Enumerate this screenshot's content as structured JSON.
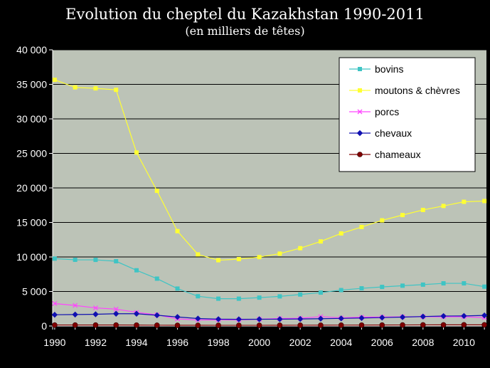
{
  "chart_data": {
    "type": "line",
    "title": "Evolution du cheptel du Kazakhstan 1990-2011",
    "subtitle": "(en milliers de têtes)",
    "xlabel": "",
    "ylabel": "",
    "x": [
      1990,
      1991,
      1992,
      1993,
      1994,
      1995,
      1996,
      1997,
      1998,
      1999,
      2000,
      2001,
      2002,
      2003,
      2004,
      2005,
      2006,
      2007,
      2008,
      2009,
      2010,
      2011
    ],
    "xlim": [
      1990,
      2011
    ],
    "ylim": [
      0,
      40000
    ],
    "x_ticks": [
      1990,
      1992,
      1994,
      1996,
      1998,
      2000,
      2002,
      2004,
      2006,
      2008,
      2010
    ],
    "y_ticks": [
      {
        "value": 0,
        "label": "0"
      },
      {
        "value": 5000,
        "label": "5 000"
      },
      {
        "value": 10000,
        "label": "10 000"
      },
      {
        "value": 15000,
        "label": "15 000"
      },
      {
        "value": 20000,
        "label": "20 000"
      },
      {
        "value": 25000,
        "label": "25 000"
      },
      {
        "value": 30000,
        "label": "30 000"
      },
      {
        "value": 35000,
        "label": "35 000"
      },
      {
        "value": 40000,
        "label": "40 000"
      }
    ],
    "grid": true,
    "legend_position": "top-right",
    "plot_background": "#bcc3b7",
    "series": [
      {
        "name": "bovins",
        "color": "#3fc4c4",
        "marker": "square",
        "values": [
          9760,
          9590,
          9580,
          9380,
          8070,
          6860,
          5420,
          4310,
          3960,
          3960,
          4110,
          4290,
          4560,
          4840,
          5200,
          5460,
          5660,
          5840,
          5990,
          6180,
          6180,
          5700
        ]
      },
      {
        "name": "moutons & chèvres",
        "color": "#ffff33",
        "marker": "square",
        "values": [
          35660,
          34560,
          34420,
          34210,
          25130,
          19580,
          13740,
          10370,
          9530,
          9690,
          9980,
          10480,
          11270,
          12250,
          13410,
          14340,
          15300,
          16070,
          16810,
          17390,
          17990,
          18100
        ]
      },
      {
        "name": "porcs",
        "color": "#ff44ff",
        "marker": "x",
        "values": [
          3250,
          2980,
          2620,
          2440,
          1980,
          1620,
          1030,
          880,
          890,
          890,
          980,
          1080,
          1120,
          1360,
          1180,
          1290,
          1310,
          1330,
          1350,
          1330,
          1340,
          1210
        ]
      },
      {
        "name": "chevaux",
        "color": "#1010b0",
        "marker": "diamond",
        "values": [
          1630,
          1660,
          1700,
          1780,
          1780,
          1560,
          1310,
          1080,
          990,
          970,
          980,
          990,
          1020,
          1060,
          1100,
          1160,
          1220,
          1290,
          1370,
          1440,
          1460,
          1530
        ]
      },
      {
        "name": "chameaux",
        "color": "#800000",
        "marker": "circle",
        "values": [
          140,
          140,
          140,
          140,
          130,
          110,
          100,
          100,
          95,
          95,
          98,
          105,
          110,
          115,
          120,
          130,
          140,
          150,
          160,
          165,
          170,
          170
        ]
      }
    ]
  }
}
